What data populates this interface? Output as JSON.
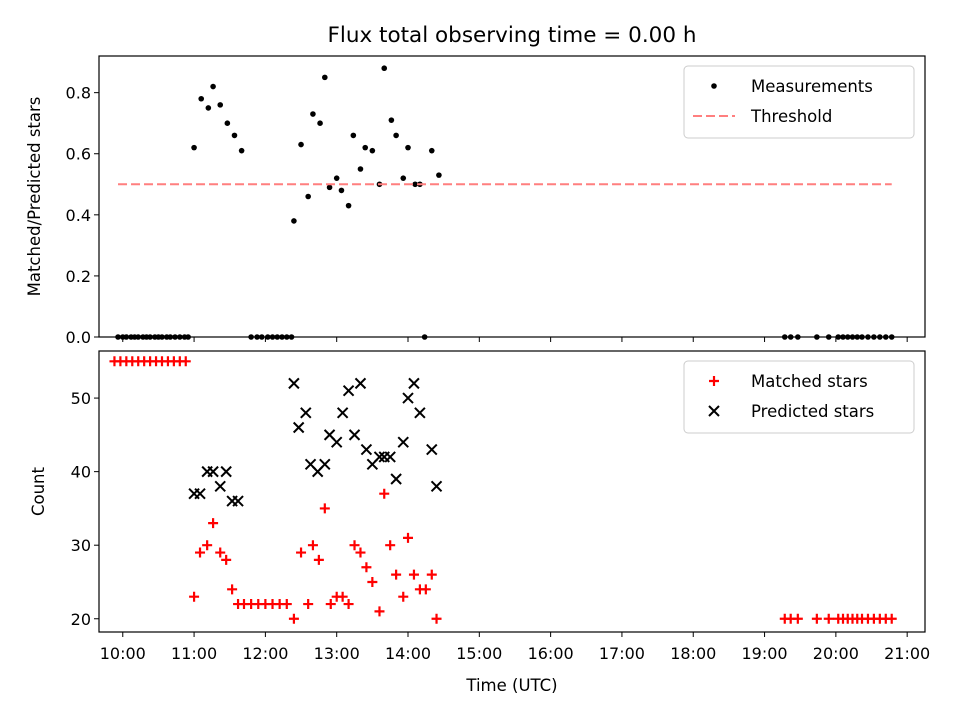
{
  "figure": {
    "title": "Flux total observing time = 0.00 h",
    "xlabel": "Time (UTC)"
  },
  "chart_data": [
    {
      "type": "scatter",
      "ylabel": "Matched/Predicted stars",
      "ylim": [
        0,
        0.92
      ],
      "xlim": [
        "09:40",
        "21:15"
      ],
      "yticks": [
        "0.0",
        "0.2",
        "0.4",
        "0.6",
        "0.8"
      ],
      "legend_position": "top-right",
      "series": [
        {
          "name": "Measurements",
          "kind": "points",
          "color": "#000000",
          "points": [
            [
              "09:56",
              0
            ],
            [
              "10:00",
              0
            ],
            [
              "10:03",
              0
            ],
            [
              "10:07",
              0
            ],
            [
              "10:10",
              0
            ],
            [
              "10:13",
              0
            ],
            [
              "10:17",
              0
            ],
            [
              "10:20",
              0
            ],
            [
              "10:23",
              0
            ],
            [
              "10:27",
              0
            ],
            [
              "10:30",
              0
            ],
            [
              "10:33",
              0
            ],
            [
              "10:37",
              0
            ],
            [
              "10:40",
              0
            ],
            [
              "10:44",
              0
            ],
            [
              "10:48",
              0
            ],
            [
              "10:52",
              0
            ],
            [
              "10:55",
              0
            ],
            [
              "11:00",
              0.62
            ],
            [
              "11:06",
              0.78
            ],
            [
              "11:12",
              0.75
            ],
            [
              "11:16",
              0.82
            ],
            [
              "11:22",
              0.76
            ],
            [
              "11:28",
              0.7
            ],
            [
              "11:34",
              0.66
            ],
            [
              "11:40",
              0.61
            ],
            [
              "11:48",
              0
            ],
            [
              "11:53",
              0
            ],
            [
              "11:57",
              0
            ],
            [
              "12:02",
              0
            ],
            [
              "12:06",
              0
            ],
            [
              "12:10",
              0
            ],
            [
              "12:14",
              0
            ],
            [
              "12:18",
              0
            ],
            [
              "12:22",
              0
            ],
            [
              "12:24",
              0.38
            ],
            [
              "12:30",
              0.63
            ],
            [
              "12:36",
              0.46
            ],
            [
              "12:40",
              0.73
            ],
            [
              "12:46",
              0.7
            ],
            [
              "12:50",
              0.85
            ],
            [
              "12:54",
              0.49
            ],
            [
              "13:00",
              0.52
            ],
            [
              "13:04",
              0.48
            ],
            [
              "13:10",
              0.43
            ],
            [
              "13:14",
              0.66
            ],
            [
              "13:20",
              0.55
            ],
            [
              "13:24",
              0.62
            ],
            [
              "13:30",
              0.61
            ],
            [
              "13:36",
              0.5
            ],
            [
              "13:40",
              0.88
            ],
            [
              "13:46",
              0.71
            ],
            [
              "13:50",
              0.66
            ],
            [
              "13:56",
              0.52
            ],
            [
              "14:00",
              0.62
            ],
            [
              "14:06",
              0.5
            ],
            [
              "14:10",
              0.5
            ],
            [
              "14:14",
              0
            ],
            [
              "14:20",
              0.61
            ],
            [
              "14:26",
              0.53
            ],
            [
              "19:17",
              0
            ],
            [
              "19:22",
              0
            ],
            [
              "19:28",
              0
            ],
            [
              "19:44",
              0
            ],
            [
              "19:54",
              0
            ],
            [
              "20:02",
              0
            ],
            [
              "20:06",
              0
            ],
            [
              "20:10",
              0
            ],
            [
              "20:14",
              0
            ],
            [
              "20:18",
              0
            ],
            [
              "20:22",
              0
            ],
            [
              "20:27",
              0
            ],
            [
              "20:32",
              0
            ],
            [
              "20:37",
              0
            ],
            [
              "20:42",
              0
            ],
            [
              "20:47",
              0
            ]
          ]
        },
        {
          "name": "Threshold",
          "kind": "dashed-line",
          "color": "#ff7f7f",
          "points": [
            [
              "09:56",
              0.5
            ],
            [
              "20:47",
              0.5
            ]
          ]
        }
      ]
    },
    {
      "type": "scatter",
      "ylabel": "Count",
      "ylim": [
        18.2,
        56.4
      ],
      "xlim": [
        "09:40",
        "21:15"
      ],
      "yticks": [
        "20",
        "30",
        "40",
        "50"
      ],
      "xticks": [
        "10:00",
        "11:00",
        "12:00",
        "13:00",
        "14:00",
        "15:00",
        "16:00",
        "17:00",
        "18:00",
        "19:00",
        "20:00",
        "21:00"
      ],
      "legend_position": "top-right",
      "series": [
        {
          "name": "Matched stars",
          "kind": "plus",
          "color": "#ff0000",
          "points": [
            [
              "09:53",
              55
            ],
            [
              "09:58",
              55
            ],
            [
              "10:03",
              55
            ],
            [
              "10:08",
              55
            ],
            [
              "10:13",
              55
            ],
            [
              "10:18",
              55
            ],
            [
              "10:23",
              55
            ],
            [
              "10:28",
              55
            ],
            [
              "10:33",
              55
            ],
            [
              "10:38",
              55
            ],
            [
              "10:43",
              55
            ],
            [
              "10:48",
              55
            ],
            [
              "10:53",
              55
            ],
            [
              "11:00",
              23
            ],
            [
              "11:05",
              29
            ],
            [
              "11:11",
              30
            ],
            [
              "11:16",
              33
            ],
            [
              "11:22",
              29
            ],
            [
              "11:27",
              28
            ],
            [
              "11:32",
              24
            ],
            [
              "11:37",
              22
            ],
            [
              "11:42",
              22
            ],
            [
              "11:48",
              22
            ],
            [
              "11:54",
              22
            ],
            [
              "12:00",
              22
            ],
            [
              "12:06",
              22
            ],
            [
              "12:12",
              22
            ],
            [
              "12:18",
              22
            ],
            [
              "12:24",
              20
            ],
            [
              "12:30",
              29
            ],
            [
              "12:36",
              22
            ],
            [
              "12:40",
              30
            ],
            [
              "12:45",
              28
            ],
            [
              "12:50",
              35
            ],
            [
              "12:55",
              22
            ],
            [
              "13:00",
              23
            ],
            [
              "13:05",
              23
            ],
            [
              "13:10",
              22
            ],
            [
              "13:15",
              30
            ],
            [
              "13:20",
              29
            ],
            [
              "13:25",
              27
            ],
            [
              "13:30",
              25
            ],
            [
              "13:36",
              21
            ],
            [
              "13:40",
              37
            ],
            [
              "13:45",
              30
            ],
            [
              "13:50",
              26
            ],
            [
              "13:56",
              23
            ],
            [
              "14:00",
              31
            ],
            [
              "14:05",
              26
            ],
            [
              "14:10",
              24
            ],
            [
              "14:15",
              24
            ],
            [
              "14:20",
              26
            ],
            [
              "14:24",
              20
            ],
            [
              "19:17",
              20
            ],
            [
              "19:22",
              20
            ],
            [
              "19:28",
              20
            ],
            [
              "19:44",
              20
            ],
            [
              "19:54",
              20
            ],
            [
              "20:02",
              20
            ],
            [
              "20:06",
              20
            ],
            [
              "20:10",
              20
            ],
            [
              "20:14",
              20
            ],
            [
              "20:18",
              20
            ],
            [
              "20:22",
              20
            ],
            [
              "20:27",
              20
            ],
            [
              "20:32",
              20
            ],
            [
              "20:37",
              20
            ],
            [
              "20:42",
              20
            ],
            [
              "20:47",
              20
            ]
          ]
        },
        {
          "name": "Predicted stars",
          "kind": "cross",
          "color": "#000000",
          "points": [
            [
              "11:00",
              37
            ],
            [
              "11:05",
              37
            ],
            [
              "11:11",
              40
            ],
            [
              "11:16",
              40
            ],
            [
              "11:22",
              38
            ],
            [
              "11:27",
              40
            ],
            [
              "11:32",
              36
            ],
            [
              "11:37",
              36
            ],
            [
              "12:24",
              52
            ],
            [
              "12:28",
              46
            ],
            [
              "12:34",
              48
            ],
            [
              "12:38",
              41
            ],
            [
              "12:44",
              40
            ],
            [
              "12:50",
              41
            ],
            [
              "12:54",
              45
            ],
            [
              "13:00",
              44
            ],
            [
              "13:05",
              48
            ],
            [
              "13:10",
              51
            ],
            [
              "13:15",
              45
            ],
            [
              "13:20",
              52
            ],
            [
              "13:25",
              43
            ],
            [
              "13:30",
              41
            ],
            [
              "13:36",
              42
            ],
            [
              "13:40",
              42
            ],
            [
              "13:45",
              42
            ],
            [
              "13:50",
              39
            ],
            [
              "13:56",
              44
            ],
            [
              "14:00",
              50
            ],
            [
              "14:05",
              52
            ],
            [
              "14:10",
              48
            ],
            [
              "14:20",
              43
            ],
            [
              "14:24",
              38
            ]
          ]
        }
      ]
    }
  ]
}
